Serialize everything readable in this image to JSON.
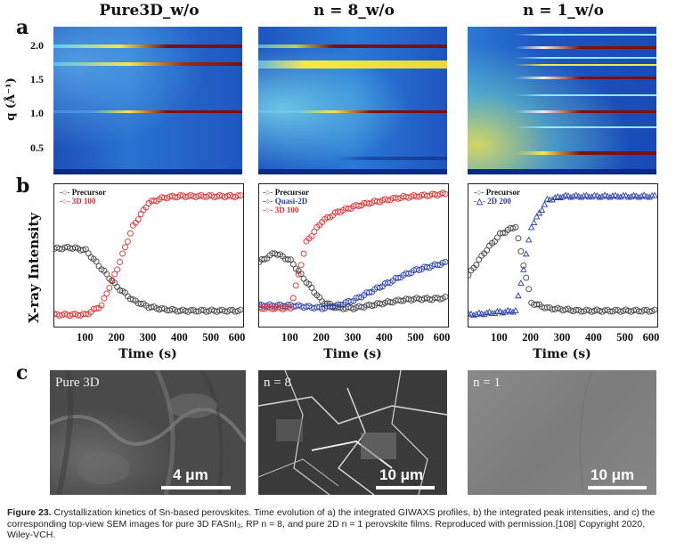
{
  "panel_letters": {
    "a": "a",
    "b": "b",
    "c": "c"
  },
  "col_titles": [
    "Pure3D_w/o",
    "n = 8_w/o",
    "n = 1_w/o"
  ],
  "panel_a": {
    "ylabel": "q (Å⁻¹)",
    "yticks": [
      "2.0",
      "1.5",
      "1.0",
      "0.5"
    ],
    "colors": {
      "background": "#2a6fc9",
      "bright": "#f5e84a",
      "peak": "#7a1010"
    }
  },
  "panel_b": {
    "ylabel": "X-ray Intensity",
    "xlabel": "Time (s)",
    "xticks": [
      "100",
      "200",
      "300",
      "400",
      "500",
      "600"
    ],
    "legends": [
      [
        "Precursor",
        "3D 100"
      ],
      [
        "Precursor",
        "Quasi-2D",
        "3D 100"
      ],
      [
        "Precursor",
        "2D 200"
      ]
    ]
  },
  "chart_data": [
    {
      "type": "scatter",
      "x": [
        0,
        50,
        100,
        150,
        200,
        250,
        300,
        350,
        400,
        450,
        500,
        550,
        600
      ],
      "xlim": [
        0,
        600
      ],
      "series": [
        {
          "name": "Precursor",
          "color": "#444444",
          "values": [
            0.55,
            0.56,
            0.54,
            0.4,
            0.26,
            0.16,
            0.11,
            0.09,
            0.08,
            0.08,
            0.08,
            0.08,
            0.08
          ]
        },
        {
          "name": "3D 100",
          "color": "#e03030",
          "values": [
            0.05,
            0.05,
            0.05,
            0.12,
            0.4,
            0.72,
            0.9,
            0.94,
            0.95,
            0.95,
            0.95,
            0.95,
            0.95
          ]
        }
      ],
      "xlabel": "Time (s)",
      "ylabel": "X-ray Intensity"
    },
    {
      "type": "scatter",
      "x": [
        0,
        50,
        100,
        150,
        200,
        250,
        300,
        350,
        400,
        450,
        500,
        550,
        600
      ],
      "xlim": [
        0,
        600
      ],
      "series": [
        {
          "name": "Precursor",
          "color": "#444444",
          "values": [
            0.45,
            0.52,
            0.46,
            0.3,
            0.15,
            0.1,
            0.1,
            0.12,
            0.14,
            0.16,
            0.17,
            0.17,
            0.18
          ]
        },
        {
          "name": "Quasi-2D",
          "color": "#2a3fae",
          "values": [
            0.12,
            0.12,
            0.12,
            0.11,
            0.1,
            0.12,
            0.16,
            0.22,
            0.28,
            0.34,
            0.39,
            0.42,
            0.45
          ]
        },
        {
          "name": "3D 100",
          "color": "#e03030",
          "values": [
            0.1,
            0.1,
            0.1,
            0.6,
            0.76,
            0.83,
            0.87,
            0.9,
            0.92,
            0.94,
            0.95,
            0.96,
            0.97
          ]
        }
      ],
      "xlabel": "Time (s)",
      "ylabel": "X-ray Intensity"
    },
    {
      "type": "scatter",
      "x": [
        0,
        50,
        100,
        150,
        200,
        250,
        300,
        350,
        400,
        450,
        500,
        550,
        600
      ],
      "xlim": [
        0,
        600
      ],
      "series": [
        {
          "name": "Precursor",
          "color": "#444444",
          "values": [
            0.35,
            0.52,
            0.66,
            0.72,
            0.14,
            0.1,
            0.09,
            0.08,
            0.08,
            0.08,
            0.08,
            0.08,
            0.08
          ]
        },
        {
          "name": "2D 200",
          "color": "#2a3fae",
          "values": [
            0.05,
            0.06,
            0.07,
            0.08,
            0.72,
            0.92,
            0.95,
            0.95,
            0.95,
            0.95,
            0.95,
            0.95,
            0.95
          ]
        }
      ],
      "xlabel": "Time (s)",
      "ylabel": "X-ray Intensity"
    }
  ],
  "panel_c": {
    "labels": [
      "Pure 3D",
      "n = 8",
      "n = 1"
    ],
    "scales": [
      "4 μm",
      "10 μm",
      "10 μm"
    ]
  },
  "caption": {
    "lead": "Figure 23.",
    "text": "Crystallization kinetics of Sn-based perovskites. Time evolution of a) the integrated GIWAXS profiles, b) the integrated peak intensities, and c) the corresponding top-view SEM images for pure 3D FASnI₃, RP n = 8, and pure 2D n = 1 perovskite films. Reproduced with permission.[108] Copyright 2020, Wiley-VCH."
  }
}
